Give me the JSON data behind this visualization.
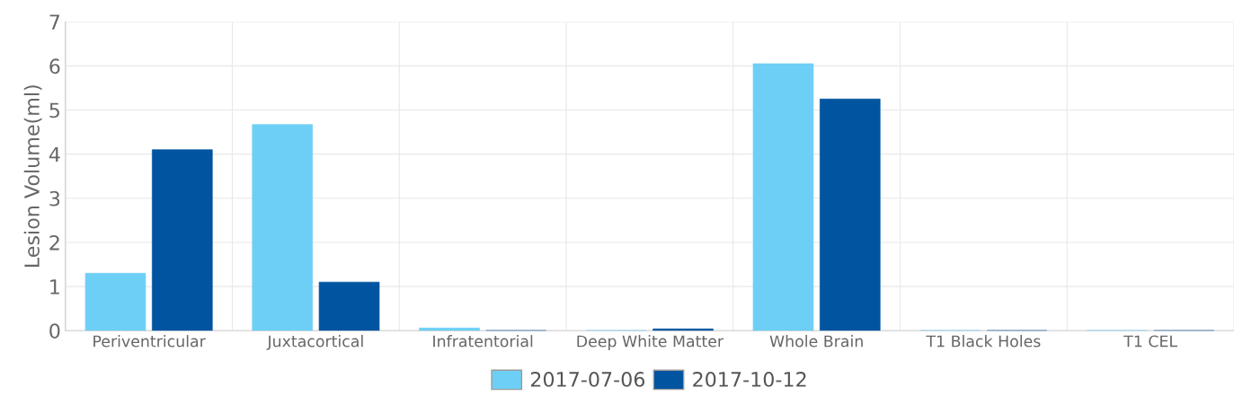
{
  "chart_data": {
    "type": "bar",
    "ylabel": "Lesion Volume(ml)",
    "categories": [
      "Periventricular",
      "Juxtacortical",
      "Infratentorial",
      "Deep White Matter",
      "Whole Brain",
      "T1 Black Holes",
      "T1 CEL"
    ],
    "series": [
      {
        "name": "2017-07-06",
        "color": "#6dcff6",
        "values": [
          1.3,
          4.67,
          0.06,
          0,
          6.05,
          0,
          0
        ]
      },
      {
        "name": "2017-10-12",
        "color": "#0054a0",
        "values": [
          4.1,
          1.1,
          0,
          0.04,
          5.25,
          0,
          0
        ]
      }
    ],
    "ylim": [
      0,
      7
    ],
    "yticks": [
      0,
      1,
      2,
      3,
      4,
      5,
      6,
      7
    ],
    "grid": true,
    "legend": "bottom"
  }
}
